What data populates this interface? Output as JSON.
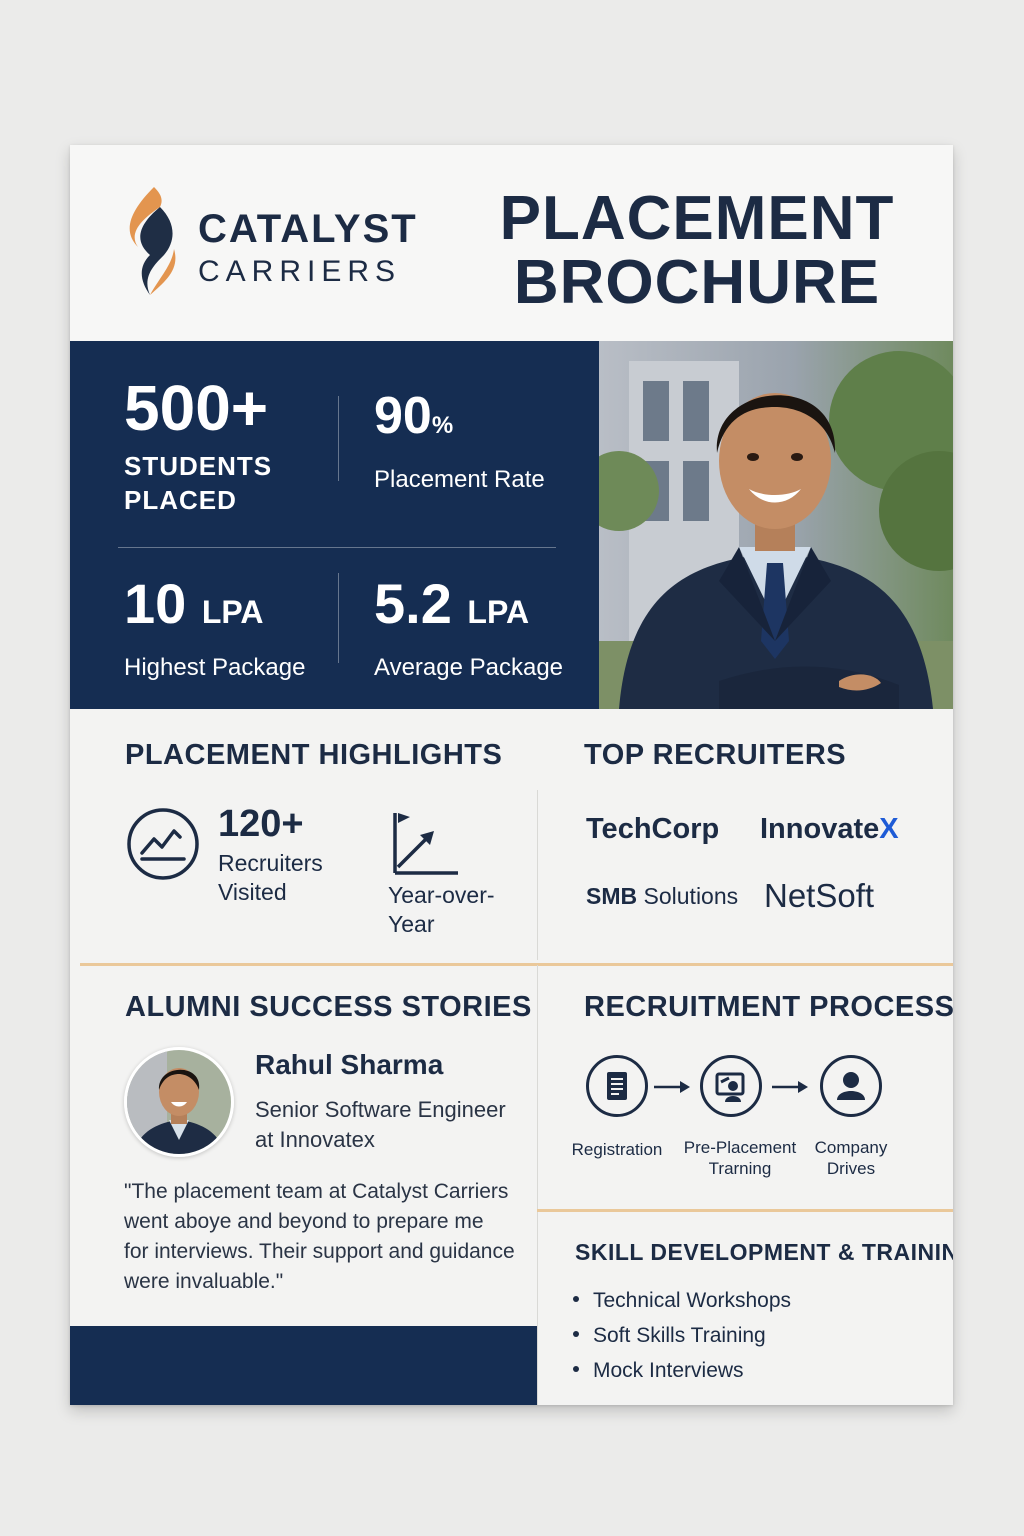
{
  "brand": {
    "name_line1": "CATALYST",
    "name_line2": "CARRIERS"
  },
  "title": {
    "line1": "PLACEMENT",
    "line2": "BROCHURE"
  },
  "stats": {
    "students_placed": {
      "value": "500+",
      "label_line1": "STUDENTS",
      "label_line2": "PLACED"
    },
    "placement_rate": {
      "value": "90",
      "unit": "%",
      "label": "Placement Rate"
    },
    "highest_package": {
      "value": "10",
      "unit": "LPA",
      "label": "Highest Package"
    },
    "average_package": {
      "value": "5.2",
      "unit": "LPA",
      "label": "Average Package"
    }
  },
  "highlights": {
    "title": "PLACEMENT HIGHLIGHTS",
    "recruiters_count": "120+",
    "recruiters_label_line1": "Recruiters",
    "recruiters_label_line2": "Visited",
    "yoy_label_line1": "Year-over-",
    "yoy_label_line2": "Year",
    "icons": [
      "growth-chart-icon",
      "trend-axis-icon"
    ]
  },
  "recruiters": {
    "title": "TOP RECRUITERS",
    "companies": [
      {
        "name": "TechCorp"
      },
      {
        "name": "Innovate",
        "accent": "X"
      },
      {
        "name_bold": "SMB",
        "name_rest": " Solutions"
      },
      {
        "name": "NetSoft"
      }
    ],
    "accent_color": "#1e5bd6"
  },
  "alumni": {
    "title": "ALUMNI SUCCESS STORIES",
    "name": "Rahul Sharma",
    "role_line1": "Senior Software Engineer",
    "role_line2": "at Innovatex",
    "quote_lines": [
      "\"The placement team at Catalyst Carriers",
      "went aboye and beyond to prepare me",
      "for interviews. Their support and guidance",
      "were invaluable.\""
    ]
  },
  "process": {
    "title": "RECRUITMENT PROCESS",
    "steps": [
      {
        "icon": "document-icon",
        "label_line1": "Registration",
        "label_line2": ""
      },
      {
        "icon": "training-icon",
        "label_line1": "Pre-Placement",
        "label_line2": "Trarning"
      },
      {
        "icon": "person-icon",
        "label_line1": "Company",
        "label_line2": "Drives"
      }
    ]
  },
  "skills": {
    "title": "SKILL DEVELOPMENT & TRAINING",
    "items": [
      "Technical Workshops",
      "Soft Skills Training",
      "Mock Interviews"
    ]
  },
  "colors": {
    "navy": "#152d52",
    "text": "#1c2b44",
    "accent_orange": "#e3954f",
    "divider_tan": "#eac89a"
  }
}
